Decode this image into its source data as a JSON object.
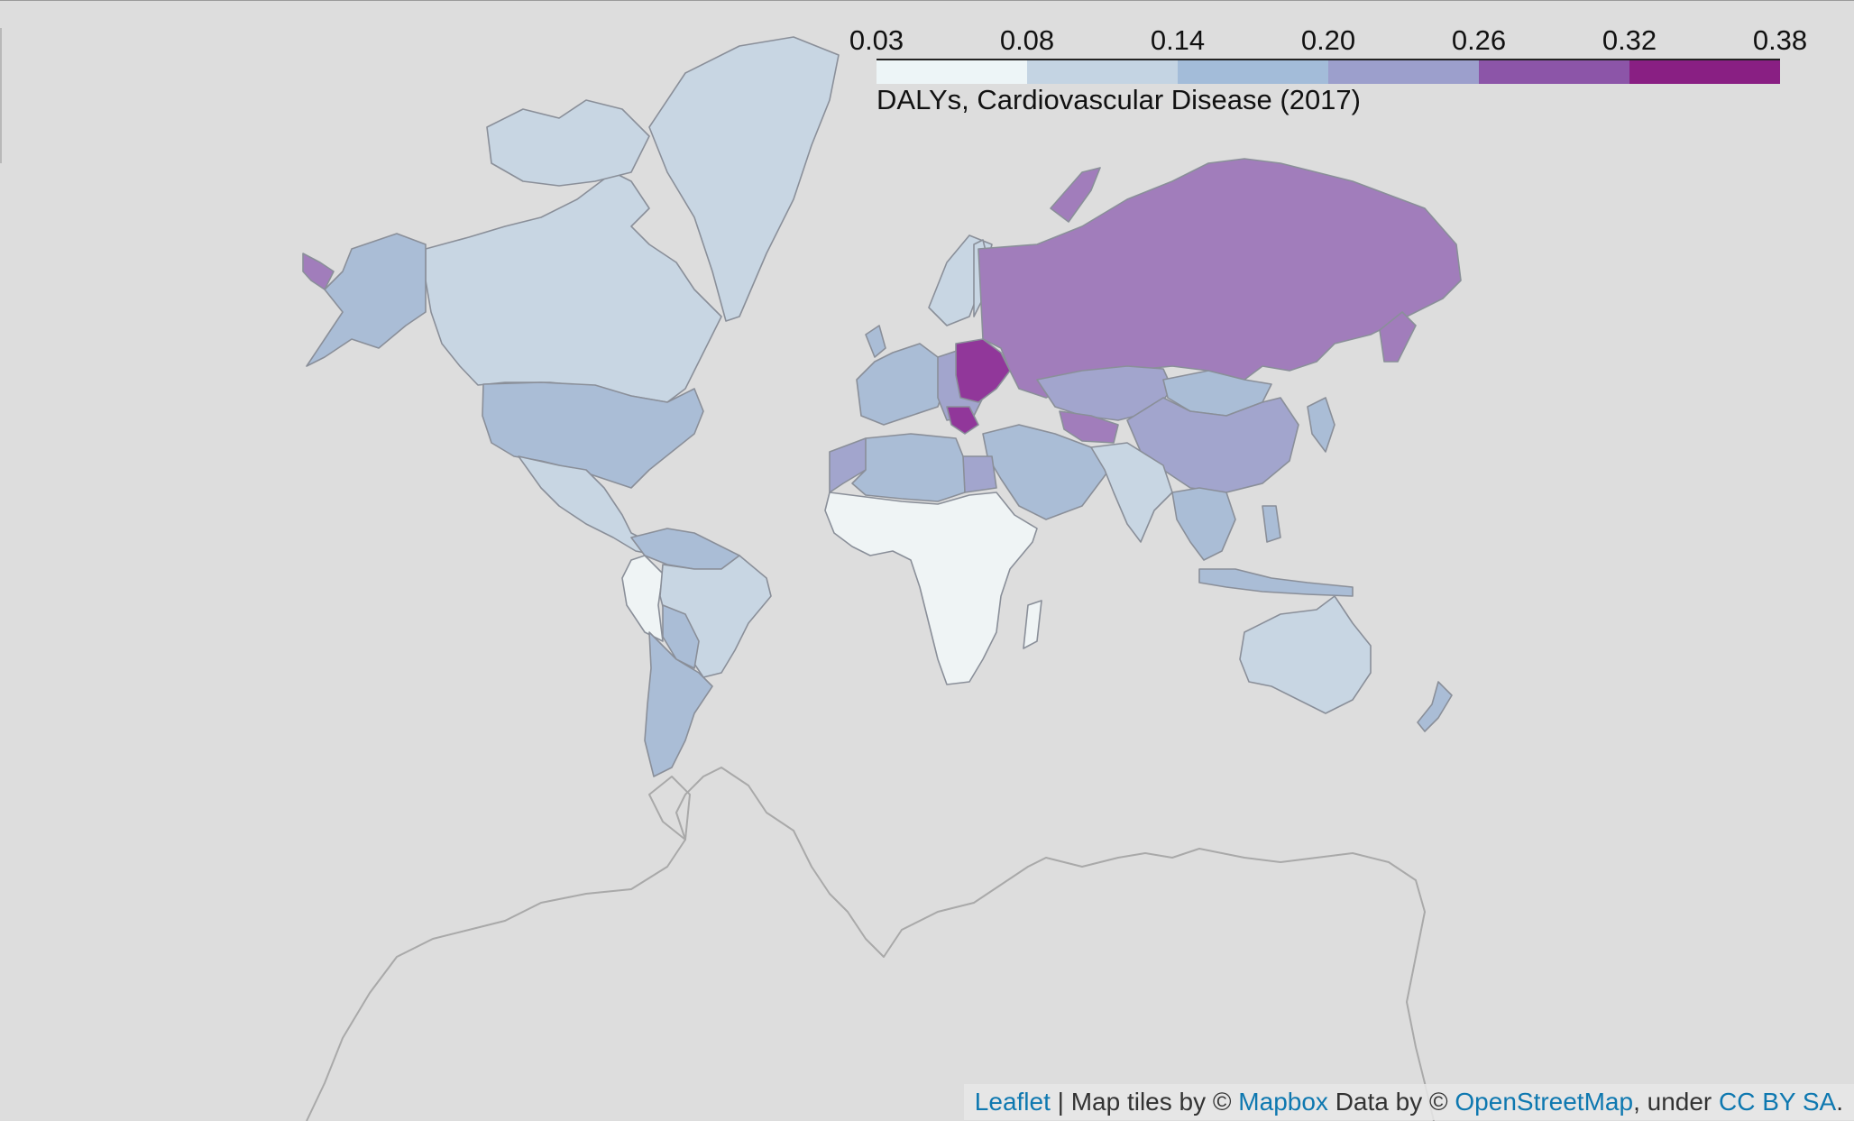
{
  "legend": {
    "title": "DALYs, Cardiovascular Disease (2017)",
    "ticks": [
      "0.03",
      "0.08",
      "0.14",
      "0.20",
      "0.26",
      "0.32",
      "0.38"
    ],
    "colors": [
      "#edf5f7",
      "#c4d4e3",
      "#a3bcd9",
      "#9c9fcc",
      "#8c55a8",
      "#891f83"
    ]
  },
  "map": {
    "background": "#dddddd",
    "bins": {
      "b1": "#eff4f5",
      "b2": "#c8d6e3",
      "b3": "#aabdd6",
      "b4": "#a2a5cd",
      "b5": "#a17dbb",
      "b6": "#91379a"
    },
    "countries": [
      {
        "name": "Canada",
        "bin": "b2"
      },
      {
        "name": "Greenland",
        "bin": "b2"
      },
      {
        "name": "Alaska",
        "bin": "b3"
      },
      {
        "name": "United States",
        "bin": "b3"
      },
      {
        "name": "Mexico & Central America",
        "bin": "b2"
      },
      {
        "name": "Venezuela & Guianas",
        "bin": "b3"
      },
      {
        "name": "Peru & Ecuador",
        "bin": "b1"
      },
      {
        "name": "Brazil",
        "bin": "b2"
      },
      {
        "name": "Argentina & Chile",
        "bin": "b3"
      },
      {
        "name": "Bolivia & Paraguay",
        "bin": "b3"
      },
      {
        "name": "Western Europe",
        "bin": "b3"
      },
      {
        "name": "Scandinavia",
        "bin": "b2"
      },
      {
        "name": "Eastern Europe",
        "bin": "b4"
      },
      {
        "name": "Ukraine & Belarus",
        "bin": "b6"
      },
      {
        "name": "Russia",
        "bin": "b5"
      },
      {
        "name": "Kazakhstan & Central Asia",
        "bin": "b4"
      },
      {
        "name": "Caucasus & Turkmenistan",
        "bin": "b5"
      },
      {
        "name": "Mongolia",
        "bin": "b3"
      },
      {
        "name": "China",
        "bin": "b4"
      },
      {
        "name": "Middle East",
        "bin": "b3"
      },
      {
        "name": "Egypt",
        "bin": "b4"
      },
      {
        "name": "North Africa",
        "bin": "b3"
      },
      {
        "name": "Morocco",
        "bin": "b4"
      },
      {
        "name": "Sub-Saharan Africa",
        "bin": "b1"
      },
      {
        "name": "Madagascar",
        "bin": "b1"
      },
      {
        "name": "South Asia",
        "bin": "b2"
      },
      {
        "name": "Southeast Asia",
        "bin": "b3"
      },
      {
        "name": "Indonesia",
        "bin": "b3"
      },
      {
        "name": "Japan & Korea",
        "bin": "b3"
      },
      {
        "name": "Australia",
        "bin": "b2"
      },
      {
        "name": "New Zealand",
        "bin": "b3"
      }
    ]
  },
  "attribution": {
    "leaflet": "Leaflet",
    "sep": " | Map tiles by © ",
    "mapbox": "Mapbox",
    "databy": " Data by © ",
    "osm": "OpenStreetMap",
    "under": ", under ",
    "license": "CC BY SA",
    "end": "."
  }
}
